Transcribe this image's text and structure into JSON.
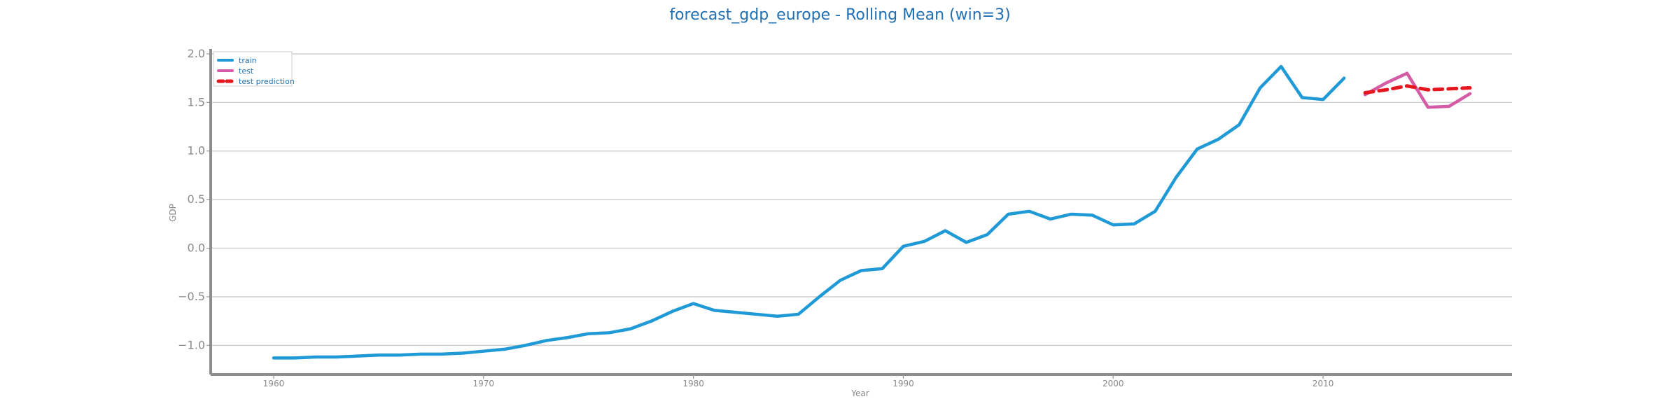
{
  "chart_data": {
    "type": "line",
    "title": "forecast_gdp_europe - Rolling Mean (win=3)",
    "xlabel": "Year",
    "ylabel": "GDP",
    "xlim": [
      1957,
      2019
    ],
    "ylim": [
      -1.3,
      2.05
    ],
    "grid": {
      "horizontal": true,
      "vertical": false
    },
    "legend": {
      "placement": "top-left",
      "entries": [
        "train",
        "test",
        "test prediction"
      ]
    },
    "x_ticks": [
      1960,
      1970,
      1980,
      1990,
      2000,
      2010
    ],
    "y_ticks": [
      -1.0,
      -0.5,
      0.0,
      0.5,
      1.0,
      1.5,
      2.0
    ],
    "y_tick_labels": [
      "−1.0",
      "−0.5",
      "0.0",
      "0.5",
      "1.0",
      "1.5",
      "2.0"
    ],
    "series": [
      {
        "name": "train",
        "style": "solid",
        "color": "#1f9ad6",
        "points": [
          [
            1960,
            -1.13
          ],
          [
            1961,
            -1.13
          ],
          [
            1962,
            -1.12
          ],
          [
            1963,
            -1.12
          ],
          [
            1964,
            -1.11
          ],
          [
            1965,
            -1.1
          ],
          [
            1966,
            -1.1
          ],
          [
            1967,
            -1.09
          ],
          [
            1968,
            -1.09
          ],
          [
            1969,
            -1.08
          ],
          [
            1970,
            -1.06
          ],
          [
            1971,
            -1.04
          ],
          [
            1972,
            -1.0
          ],
          [
            1973,
            -0.95
          ],
          [
            1974,
            -0.92
          ],
          [
            1975,
            -0.88
          ],
          [
            1976,
            -0.87
          ],
          [
            1977,
            -0.83
          ],
          [
            1978,
            -0.75
          ],
          [
            1979,
            -0.65
          ],
          [
            1980,
            -0.57
          ],
          [
            1981,
            -0.64
          ],
          [
            1982,
            -0.66
          ],
          [
            1983,
            -0.68
          ],
          [
            1984,
            -0.7
          ],
          [
            1985,
            -0.68
          ],
          [
            1986,
            -0.5
          ],
          [
            1987,
            -0.33
          ],
          [
            1988,
            -0.23
          ],
          [
            1989,
            -0.21
          ],
          [
            1990,
            0.02
          ],
          [
            1991,
            0.07
          ],
          [
            1992,
            0.18
          ],
          [
            1993,
            0.06
          ],
          [
            1994,
            0.14
          ],
          [
            1995,
            0.35
          ],
          [
            1996,
            0.38
          ],
          [
            1997,
            0.3
          ],
          [
            1998,
            0.35
          ],
          [
            1999,
            0.34
          ],
          [
            2000,
            0.24
          ],
          [
            2001,
            0.25
          ],
          [
            2002,
            0.38
          ],
          [
            2003,
            0.73
          ],
          [
            2004,
            1.02
          ],
          [
            2005,
            1.12
          ],
          [
            2006,
            1.27
          ],
          [
            2007,
            1.65
          ],
          [
            2008,
            1.87
          ],
          [
            2009,
            1.55
          ],
          [
            2010,
            1.53
          ],
          [
            2011,
            1.75
          ]
        ]
      },
      {
        "name": "test",
        "style": "solid",
        "color": "#d45ca6",
        "points": [
          [
            2012,
            1.58
          ],
          [
            2013,
            1.7
          ],
          [
            2014,
            1.8
          ],
          [
            2015,
            1.45
          ],
          [
            2016,
            1.46
          ],
          [
            2017,
            1.59
          ]
        ]
      },
      {
        "name": "test prediction",
        "style": "dashed",
        "color": "#e5161d",
        "points": [
          [
            2012,
            1.6
          ],
          [
            2013,
            1.63
          ],
          [
            2014,
            1.67
          ],
          [
            2015,
            1.63
          ],
          [
            2016,
            1.64
          ],
          [
            2017,
            1.65
          ]
        ]
      }
    ]
  }
}
